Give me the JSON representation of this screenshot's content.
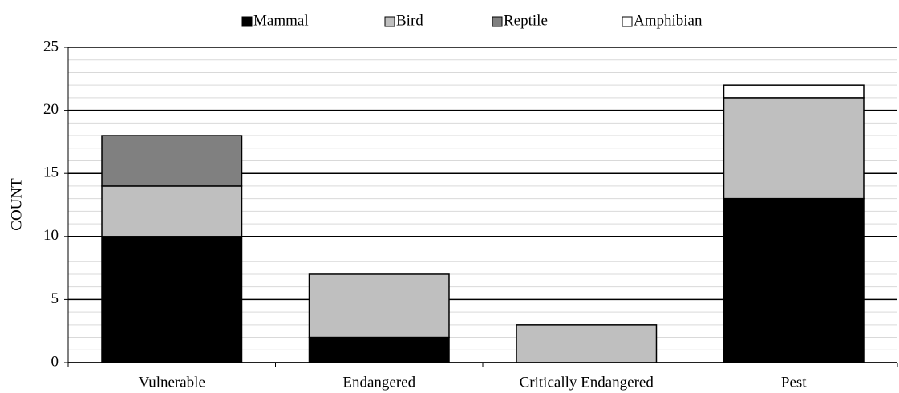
{
  "chart_data": {
    "type": "stacked_bar",
    "categories": [
      "Vulnerable",
      "Endangered",
      "Critically Endangered",
      "Pest"
    ],
    "series": [
      {
        "name": "Mammal",
        "color": "#000000",
        "values": [
          10,
          2,
          0,
          13
        ]
      },
      {
        "name": "Bird",
        "color": "#bfbfbf",
        "values": [
          4,
          5,
          3,
          8
        ]
      },
      {
        "name": "Reptile",
        "color": "#808080",
        "values": [
          4,
          0,
          0,
          0
        ]
      },
      {
        "name": "Amphibian",
        "color": "#ffffff",
        "values": [
          0,
          0,
          0,
          1
        ]
      }
    ],
    "ylabel": "COUNT",
    "ylim": [
      0,
      25
    ],
    "yticks": [
      0,
      5,
      10,
      15,
      20,
      25
    ],
    "minor_yticks": [
      1,
      2,
      3,
      4,
      6,
      7,
      8,
      9,
      11,
      12,
      13,
      14,
      16,
      17,
      18,
      19,
      21,
      22,
      23,
      24
    ],
    "grid": true,
    "legend": "top"
  }
}
